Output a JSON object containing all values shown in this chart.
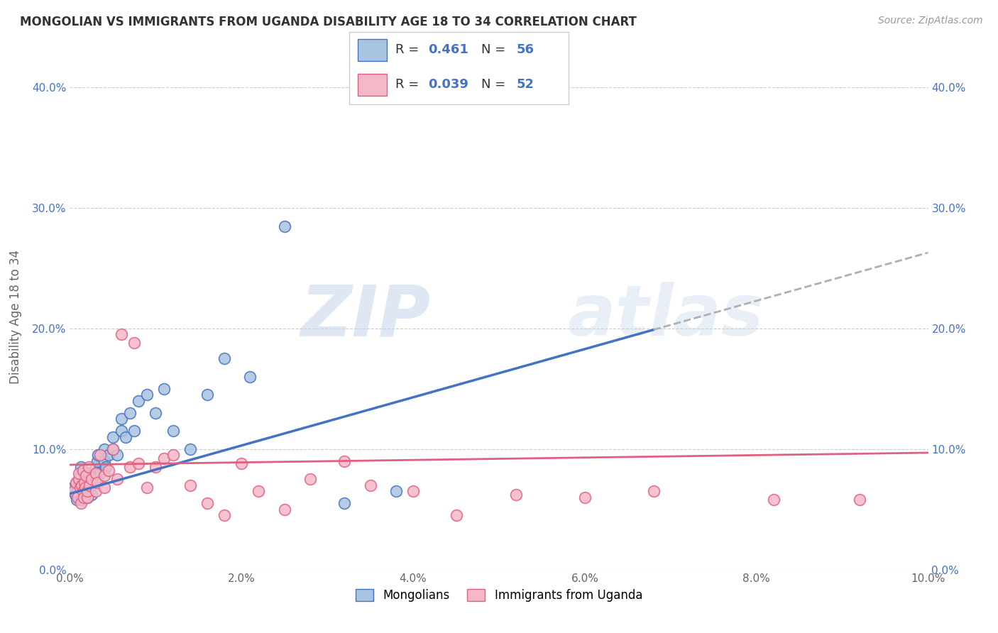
{
  "title": "MONGOLIAN VS IMMIGRANTS FROM UGANDA DISABILITY AGE 18 TO 34 CORRELATION CHART",
  "source": "Source: ZipAtlas.com",
  "ylabel": "Disability Age 18 to 34",
  "xlim": [
    0.0,
    0.1
  ],
  "ylim": [
    0.0,
    0.42
  ],
  "xticks": [
    0.0,
    0.02,
    0.04,
    0.06,
    0.08,
    0.1
  ],
  "yticks": [
    0.0,
    0.1,
    0.2,
    0.3,
    0.4
  ],
  "mongolian_color": "#a8c4e0",
  "uganda_color": "#f4b8c8",
  "mongolian_line_color": "#4472c4",
  "uganda_line_color": "#e06080",
  "trend_ext_color": "#b0b0b0",
  "R_mongolian": 0.461,
  "N_mongolian": 56,
  "R_uganda": 0.039,
  "N_uganda": 52,
  "mongolian_x": [
    0.0004,
    0.0006,
    0.0007,
    0.0008,
    0.0009,
    0.001,
    0.001,
    0.0012,
    0.0012,
    0.0013,
    0.0014,
    0.0015,
    0.0015,
    0.0016,
    0.0017,
    0.0017,
    0.0018,
    0.0019,
    0.002,
    0.002,
    0.0021,
    0.0022,
    0.0022,
    0.0023,
    0.0024,
    0.0025,
    0.0025,
    0.003,
    0.003,
    0.0032,
    0.0033,
    0.0035,
    0.004,
    0.004,
    0.0042,
    0.0045,
    0.005,
    0.005,
    0.0055,
    0.006,
    0.006,
    0.0065,
    0.007,
    0.0075,
    0.008,
    0.009,
    0.01,
    0.011,
    0.012,
    0.014,
    0.016,
    0.018,
    0.021,
    0.025,
    0.032,
    0.038
  ],
  "mongolian_y": [
    0.068,
    0.062,
    0.071,
    0.058,
    0.065,
    0.06,
    0.072,
    0.062,
    0.078,
    0.085,
    0.058,
    0.065,
    0.075,
    0.068,
    0.072,
    0.08,
    0.062,
    0.07,
    0.06,
    0.068,
    0.075,
    0.065,
    0.08,
    0.068,
    0.072,
    0.062,
    0.078,
    0.075,
    0.085,
    0.09,
    0.095,
    0.08,
    0.09,
    0.1,
    0.085,
    0.095,
    0.1,
    0.11,
    0.095,
    0.115,
    0.125,
    0.11,
    0.13,
    0.115,
    0.14,
    0.145,
    0.13,
    0.15,
    0.115,
    0.1,
    0.145,
    0.175,
    0.16,
    0.285,
    0.055,
    0.065
  ],
  "uganda_x": [
    0.0005,
    0.0007,
    0.0009,
    0.001,
    0.001,
    0.0012,
    0.0013,
    0.0014,
    0.0015,
    0.0015,
    0.0016,
    0.0017,
    0.0018,
    0.0019,
    0.002,
    0.002,
    0.0022,
    0.0023,
    0.0025,
    0.003,
    0.003,
    0.0032,
    0.0035,
    0.004,
    0.004,
    0.0045,
    0.005,
    0.0055,
    0.006,
    0.007,
    0.0075,
    0.008,
    0.009,
    0.01,
    0.011,
    0.012,
    0.014,
    0.016,
    0.018,
    0.02,
    0.022,
    0.025,
    0.028,
    0.032,
    0.035,
    0.04,
    0.045,
    0.052,
    0.06,
    0.068,
    0.082,
    0.092
  ],
  "uganda_y": [
    0.065,
    0.072,
    0.06,
    0.075,
    0.08,
    0.068,
    0.055,
    0.07,
    0.065,
    0.082,
    0.06,
    0.072,
    0.068,
    0.078,
    0.06,
    0.065,
    0.085,
    0.07,
    0.075,
    0.065,
    0.08,
    0.072,
    0.095,
    0.068,
    0.078,
    0.082,
    0.1,
    0.075,
    0.195,
    0.085,
    0.188,
    0.088,
    0.068,
    0.085,
    0.092,
    0.095,
    0.07,
    0.055,
    0.045,
    0.088,
    0.065,
    0.05,
    0.075,
    0.09,
    0.07,
    0.065,
    0.045,
    0.062,
    0.06,
    0.065,
    0.058,
    0.058
  ],
  "watermark_zip": "ZIP",
  "watermark_atlas": "atlas",
  "bottom_legend_blue": "Mongolians",
  "bottom_legend_pink": "Immigrants from Uganda"
}
